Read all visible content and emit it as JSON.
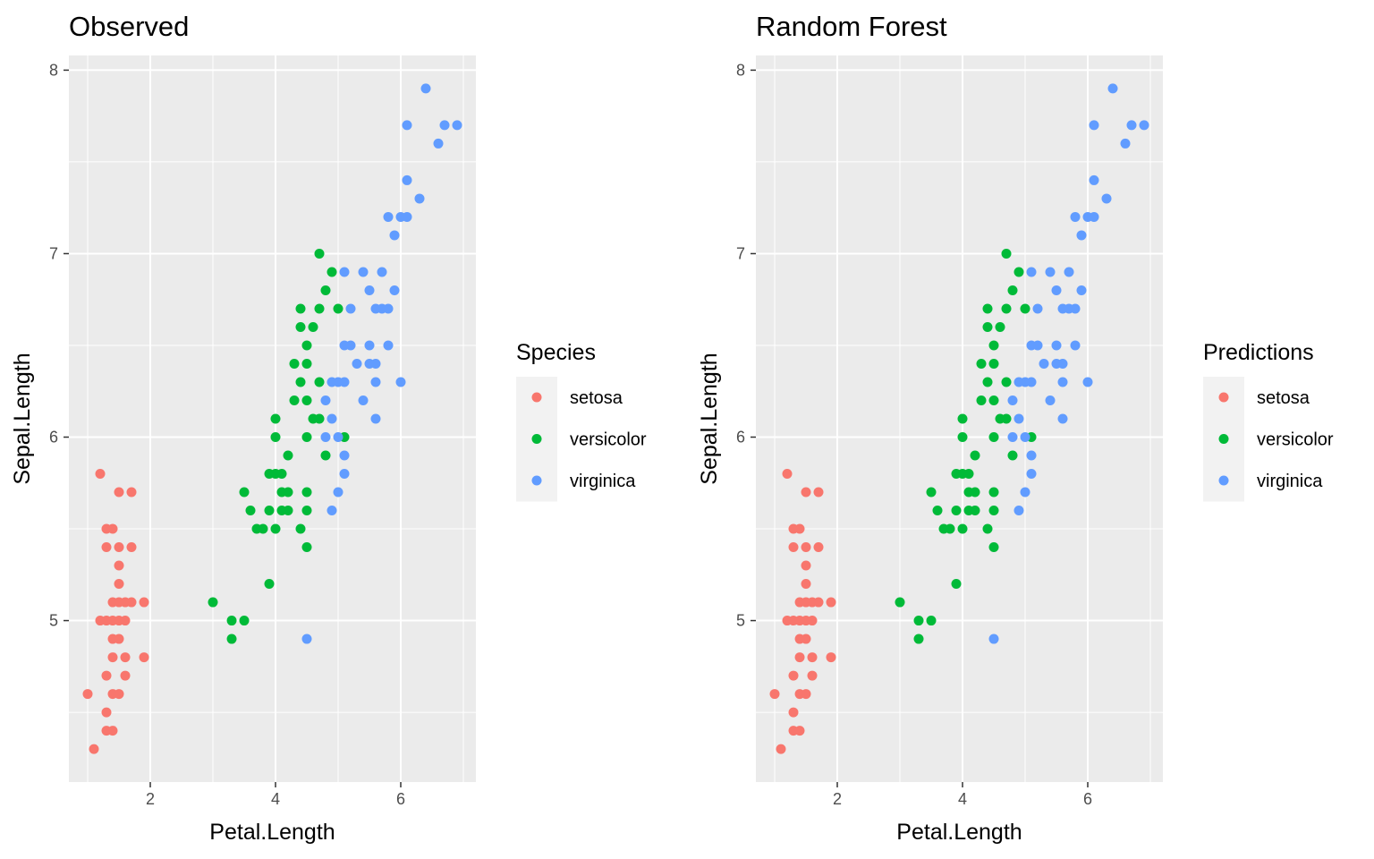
{
  "chart_data": [
    {
      "type": "scatter",
      "title": "Observed",
      "xlabel": "Petal.Length",
      "ylabel": "Sepal.Length",
      "xlim": [
        0.7,
        7.2
      ],
      "ylim": [
        4.12,
        8.08
      ],
      "xticks": [
        2,
        4,
        6
      ],
      "yticks": [
        5,
        6,
        7,
        8
      ],
      "grid": true,
      "legend": {
        "title": "Species",
        "position": "right"
      },
      "series": [
        {
          "name": "setosa",
          "color": "#F8766D",
          "points": [
            [
              1.0,
              4.6
            ],
            [
              1.1,
              4.3
            ],
            [
              1.2,
              5.8
            ],
            [
              1.2,
              5.0
            ],
            [
              1.3,
              5.5
            ],
            [
              1.3,
              5.4
            ],
            [
              1.3,
              5.0
            ],
            [
              1.3,
              4.7
            ],
            [
              1.3,
              4.5
            ],
            [
              1.3,
              4.4
            ],
            [
              1.4,
              5.5
            ],
            [
              1.4,
              5.1
            ],
            [
              1.4,
              5.0
            ],
            [
              1.4,
              4.9
            ],
            [
              1.4,
              4.8
            ],
            [
              1.4,
              4.6
            ],
            [
              1.4,
              4.4
            ],
            [
              1.5,
              5.7
            ],
            [
              1.5,
              5.4
            ],
            [
              1.5,
              5.3
            ],
            [
              1.5,
              5.2
            ],
            [
              1.5,
              5.1
            ],
            [
              1.5,
              5.0
            ],
            [
              1.5,
              4.9
            ],
            [
              1.5,
              4.6
            ],
            [
              1.6,
              5.1
            ],
            [
              1.6,
              5.0
            ],
            [
              1.6,
              4.8
            ],
            [
              1.6,
              4.7
            ],
            [
              1.7,
              5.7
            ],
            [
              1.7,
              5.4
            ],
            [
              1.7,
              5.1
            ],
            [
              1.9,
              5.1
            ],
            [
              1.9,
              4.8
            ]
          ]
        },
        {
          "name": "versicolor",
          "color": "#00BA38",
          "points": [
            [
              3.0,
              5.1
            ],
            [
              3.3,
              5.0
            ],
            [
              3.3,
              4.9
            ],
            [
              3.5,
              5.7
            ],
            [
              3.5,
              5.0
            ],
            [
              3.6,
              5.6
            ],
            [
              3.7,
              5.5
            ],
            [
              3.8,
              5.5
            ],
            [
              3.9,
              5.8
            ],
            [
              3.9,
              5.6
            ],
            [
              3.9,
              5.2
            ],
            [
              4.0,
              6.1
            ],
            [
              4.0,
              6.0
            ],
            [
              4.0,
              5.8
            ],
            [
              4.0,
              5.5
            ],
            [
              4.1,
              5.8
            ],
            [
              4.1,
              5.7
            ],
            [
              4.1,
              5.6
            ],
            [
              4.2,
              5.9
            ],
            [
              4.2,
              5.7
            ],
            [
              4.2,
              5.6
            ],
            [
              4.3,
              6.4
            ],
            [
              4.3,
              6.2
            ],
            [
              4.4,
              6.7
            ],
            [
              4.4,
              6.6
            ],
            [
              4.4,
              6.3
            ],
            [
              4.4,
              5.5
            ],
            [
              4.5,
              6.5
            ],
            [
              4.5,
              6.4
            ],
            [
              4.5,
              6.2
            ],
            [
              4.5,
              6.0
            ],
            [
              4.5,
              5.7
            ],
            [
              4.5,
              5.6
            ],
            [
              4.5,
              5.4
            ],
            [
              4.6,
              6.6
            ],
            [
              4.6,
              6.1
            ],
            [
              4.7,
              7.0
            ],
            [
              4.7,
              6.7
            ],
            [
              4.7,
              6.3
            ],
            [
              4.7,
              6.1
            ],
            [
              4.8,
              6.8
            ],
            [
              4.8,
              5.9
            ],
            [
              4.9,
              6.9
            ],
            [
              5.0,
              6.7
            ],
            [
              5.1,
              6.0
            ]
          ]
        },
        {
          "name": "virginica",
          "color": "#619CFF",
          "points": [
            [
              4.5,
              4.9
            ],
            [
              4.8,
              6.2
            ],
            [
              4.8,
              6.0
            ],
            [
              4.9,
              6.3
            ],
            [
              4.9,
              6.1
            ],
            [
              4.9,
              5.6
            ],
            [
              5.0,
              6.3
            ],
            [
              5.0,
              6.0
            ],
            [
              5.0,
              5.7
            ],
            [
              5.1,
              6.9
            ],
            [
              5.1,
              6.5
            ],
            [
              5.1,
              6.3
            ],
            [
              5.1,
              5.9
            ],
            [
              5.1,
              5.8
            ],
            [
              5.2,
              6.7
            ],
            [
              5.2,
              6.5
            ],
            [
              5.3,
              6.4
            ],
            [
              5.4,
              6.9
            ],
            [
              5.4,
              6.2
            ],
            [
              5.5,
              6.8
            ],
            [
              5.5,
              6.5
            ],
            [
              5.5,
              6.4
            ],
            [
              5.6,
              6.7
            ],
            [
              5.6,
              6.4
            ],
            [
              5.6,
              6.3
            ],
            [
              5.6,
              6.1
            ],
            [
              5.7,
              6.9
            ],
            [
              5.7,
              6.7
            ],
            [
              5.8,
              6.7
            ],
            [
              5.8,
              6.5
            ],
            [
              5.8,
              7.2
            ],
            [
              5.9,
              7.1
            ],
            [
              5.9,
              6.8
            ],
            [
              6.0,
              7.2
            ],
            [
              6.0,
              6.3
            ],
            [
              6.1,
              7.7
            ],
            [
              6.1,
              7.4
            ],
            [
              6.1,
              7.2
            ],
            [
              6.3,
              7.3
            ],
            [
              6.4,
              7.9
            ],
            [
              6.6,
              7.6
            ],
            [
              6.7,
              7.7
            ],
            [
              6.9,
              7.7
            ]
          ]
        }
      ]
    },
    {
      "type": "scatter",
      "title": "Random Forest",
      "xlabel": "Petal.Length",
      "ylabel": "Sepal.Length",
      "xlim": [
        0.7,
        7.2
      ],
      "ylim": [
        4.12,
        8.08
      ],
      "xticks": [
        2,
        4,
        6
      ],
      "yticks": [
        5,
        6,
        7,
        8
      ],
      "grid": true,
      "legend": {
        "title": "Predictions",
        "position": "right"
      },
      "series": [
        {
          "name": "setosa",
          "color": "#F8766D",
          "points": [
            [
              1.0,
              4.6
            ],
            [
              1.1,
              4.3
            ],
            [
              1.2,
              5.8
            ],
            [
              1.2,
              5.0
            ],
            [
              1.3,
              5.5
            ],
            [
              1.3,
              5.4
            ],
            [
              1.3,
              5.0
            ],
            [
              1.3,
              4.7
            ],
            [
              1.3,
              4.5
            ],
            [
              1.3,
              4.4
            ],
            [
              1.4,
              5.5
            ],
            [
              1.4,
              5.1
            ],
            [
              1.4,
              5.0
            ],
            [
              1.4,
              4.9
            ],
            [
              1.4,
              4.8
            ],
            [
              1.4,
              4.6
            ],
            [
              1.4,
              4.4
            ],
            [
              1.5,
              5.7
            ],
            [
              1.5,
              5.4
            ],
            [
              1.5,
              5.3
            ],
            [
              1.5,
              5.2
            ],
            [
              1.5,
              5.1
            ],
            [
              1.5,
              5.0
            ],
            [
              1.5,
              4.9
            ],
            [
              1.5,
              4.6
            ],
            [
              1.6,
              5.1
            ],
            [
              1.6,
              5.0
            ],
            [
              1.6,
              4.8
            ],
            [
              1.6,
              4.7
            ],
            [
              1.7,
              5.7
            ],
            [
              1.7,
              5.4
            ],
            [
              1.7,
              5.1
            ],
            [
              1.9,
              5.1
            ],
            [
              1.9,
              4.8
            ]
          ]
        },
        {
          "name": "versicolor",
          "color": "#00BA38",
          "points": [
            [
              3.0,
              5.1
            ],
            [
              3.3,
              5.0
            ],
            [
              3.3,
              4.9
            ],
            [
              3.5,
              5.7
            ],
            [
              3.5,
              5.0
            ],
            [
              3.6,
              5.6
            ],
            [
              3.7,
              5.5
            ],
            [
              3.8,
              5.5
            ],
            [
              3.9,
              5.8
            ],
            [
              3.9,
              5.6
            ],
            [
              3.9,
              5.2
            ],
            [
              4.0,
              6.1
            ],
            [
              4.0,
              6.0
            ],
            [
              4.0,
              5.8
            ],
            [
              4.0,
              5.5
            ],
            [
              4.1,
              5.8
            ],
            [
              4.1,
              5.7
            ],
            [
              4.1,
              5.6
            ],
            [
              4.2,
              5.9
            ],
            [
              4.2,
              5.7
            ],
            [
              4.2,
              5.6
            ],
            [
              4.3,
              6.4
            ],
            [
              4.3,
              6.2
            ],
            [
              4.4,
              6.7
            ],
            [
              4.4,
              6.6
            ],
            [
              4.4,
              6.3
            ],
            [
              4.4,
              5.5
            ],
            [
              4.5,
              6.5
            ],
            [
              4.5,
              6.4
            ],
            [
              4.5,
              6.2
            ],
            [
              4.5,
              6.0
            ],
            [
              4.5,
              5.7
            ],
            [
              4.5,
              5.6
            ],
            [
              4.5,
              5.4
            ],
            [
              4.6,
              6.6
            ],
            [
              4.6,
              6.1
            ],
            [
              4.7,
              7.0
            ],
            [
              4.7,
              6.7
            ],
            [
              4.7,
              6.3
            ],
            [
              4.7,
              6.1
            ],
            [
              4.8,
              6.8
            ],
            [
              4.8,
              5.9
            ],
            [
              4.9,
              6.9
            ],
            [
              5.0,
              6.7
            ],
            [
              5.1,
              6.0
            ]
          ]
        },
        {
          "name": "virginica",
          "color": "#619CFF",
          "points": [
            [
              4.5,
              4.9
            ],
            [
              4.8,
              6.2
            ],
            [
              4.8,
              6.0
            ],
            [
              4.9,
              6.3
            ],
            [
              4.9,
              6.1
            ],
            [
              4.9,
              5.6
            ],
            [
              5.0,
              6.3
            ],
            [
              5.0,
              6.0
            ],
            [
              5.0,
              5.7
            ],
            [
              5.1,
              6.9
            ],
            [
              5.1,
              6.5
            ],
            [
              5.1,
              6.3
            ],
            [
              5.1,
              5.9
            ],
            [
              5.1,
              5.8
            ],
            [
              5.2,
              6.7
            ],
            [
              5.2,
              6.5
            ],
            [
              5.3,
              6.4
            ],
            [
              5.4,
              6.9
            ],
            [
              5.4,
              6.2
            ],
            [
              5.5,
              6.8
            ],
            [
              5.5,
              6.5
            ],
            [
              5.5,
              6.4
            ],
            [
              5.6,
              6.7
            ],
            [
              5.6,
              6.4
            ],
            [
              5.6,
              6.3
            ],
            [
              5.6,
              6.1
            ],
            [
              5.7,
              6.9
            ],
            [
              5.7,
              6.7
            ],
            [
              5.8,
              6.7
            ],
            [
              5.8,
              6.5
            ],
            [
              5.8,
              7.2
            ],
            [
              5.9,
              7.1
            ],
            [
              5.9,
              6.8
            ],
            [
              6.0,
              7.2
            ],
            [
              6.0,
              6.3
            ],
            [
              6.1,
              7.7
            ],
            [
              6.1,
              7.4
            ],
            [
              6.1,
              7.2
            ],
            [
              6.3,
              7.3
            ],
            [
              6.4,
              7.9
            ],
            [
              6.6,
              7.6
            ],
            [
              6.7,
              7.7
            ],
            [
              6.9,
              7.7
            ]
          ]
        }
      ]
    }
  ]
}
